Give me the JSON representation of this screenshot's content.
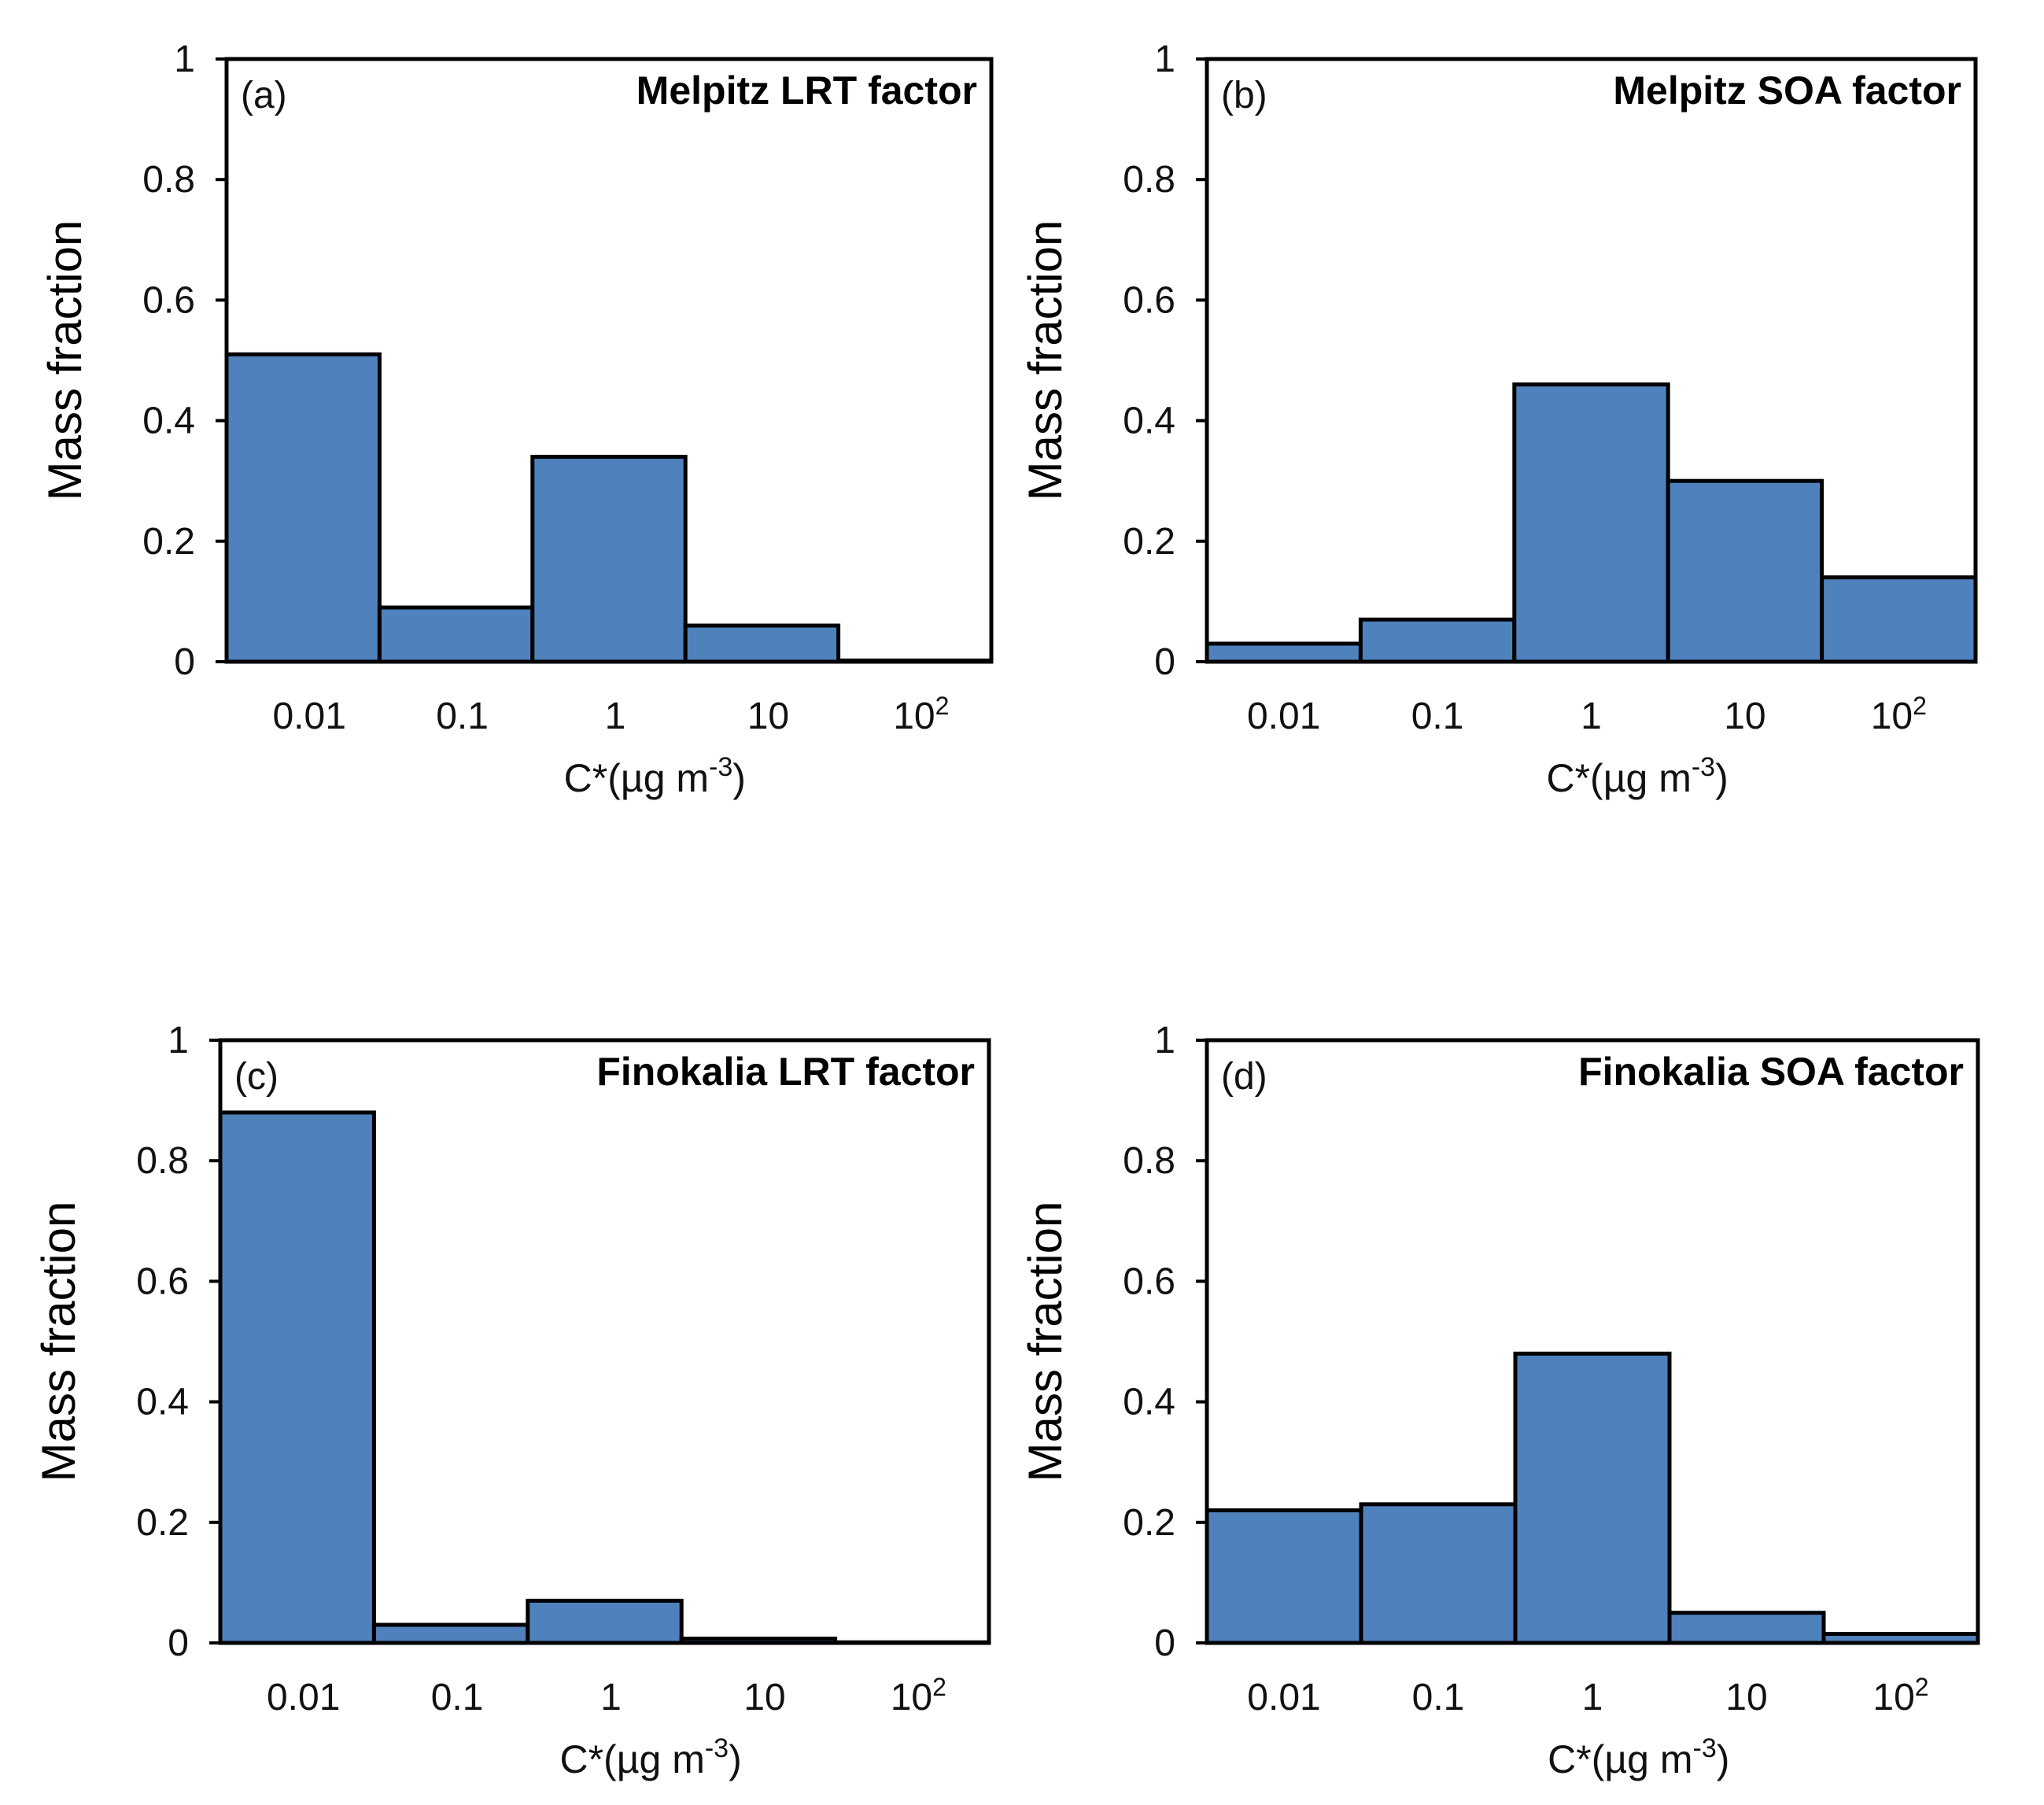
{
  "chart_data": [
    {
      "type": "bar",
      "panel_label": "(a)",
      "title": "Melpitz  LRT factor",
      "categories": [
        "0.01",
        "0.1",
        "1",
        "10",
        "10^2"
      ],
      "category_display": [
        {
          "base": "0.01",
          "sup": ""
        },
        {
          "base": "0.1",
          "sup": ""
        },
        {
          "base": "1",
          "sup": ""
        },
        {
          "base": "10",
          "sup": ""
        },
        {
          "base": "10",
          "sup": "2"
        }
      ],
      "values": [
        0.51,
        0.09,
        0.34,
        0.06,
        0.002
      ],
      "xlabel": {
        "pre": "C*(µg m",
        "sup": "-3",
        "post": ")"
      },
      "ylabel": "Mass fraction",
      "ylim": [
        0,
        1
      ],
      "yticks": [
        "0",
        "0.2",
        "0.4",
        "0.6",
        "0.8",
        "1"
      ]
    },
    {
      "type": "bar",
      "panel_label": "(b)",
      "title": "Melpitz  SOA factor",
      "categories": [
        "0.01",
        "0.1",
        "1",
        "10",
        "10^2"
      ],
      "category_display": [
        {
          "base": "0.01",
          "sup": ""
        },
        {
          "base": "0.1",
          "sup": ""
        },
        {
          "base": "1",
          "sup": ""
        },
        {
          "base": "10",
          "sup": ""
        },
        {
          "base": "10",
          "sup": "2"
        }
      ],
      "values": [
        0.03,
        0.07,
        0.46,
        0.3,
        0.14
      ],
      "xlabel": {
        "pre": "C*(µg m",
        "sup": "-3",
        "post": ")"
      },
      "ylabel": "Mass fraction",
      "ylim": [
        0,
        1
      ],
      "yticks": [
        "0",
        "0.2",
        "0.4",
        "0.6",
        "0.8",
        "1"
      ]
    },
    {
      "type": "bar",
      "panel_label": "(c)",
      "title": "Finokalia  LRT factor",
      "categories": [
        "0.01",
        "0.1",
        "1",
        "10",
        "10^2"
      ],
      "category_display": [
        {
          "base": "0.01",
          "sup": ""
        },
        {
          "base": "0.1",
          "sup": ""
        },
        {
          "base": "1",
          "sup": ""
        },
        {
          "base": "10",
          "sup": ""
        },
        {
          "base": "10",
          "sup": "2"
        }
      ],
      "values": [
        0.88,
        0.03,
        0.07,
        0.007,
        0.001
      ],
      "xlabel": {
        "pre": "C*(µg m",
        "sup": "-3",
        "post": ")"
      },
      "ylabel": "Mass fraction",
      "ylim": [
        0,
        1
      ],
      "yticks": [
        "0",
        "0.2",
        "0.4",
        "0.6",
        "0.8",
        "1"
      ]
    },
    {
      "type": "bar",
      "panel_label": "(d)",
      "title": "Finokalia  SOA factor",
      "categories": [
        "0.01",
        "0.1",
        "1",
        "10",
        "10^2"
      ],
      "category_display": [
        {
          "base": "0.01",
          "sup": ""
        },
        {
          "base": "0.1",
          "sup": ""
        },
        {
          "base": "1",
          "sup": ""
        },
        {
          "base": "10",
          "sup": ""
        },
        {
          "base": "10",
          "sup": "2"
        }
      ],
      "values": [
        0.22,
        0.23,
        0.48,
        0.05,
        0.015
      ],
      "xlabel": {
        "pre": "C*(µg m",
        "sup": "-3",
        "post": ")"
      },
      "ylabel": "Mass fraction",
      "ylim": [
        0,
        1
      ],
      "yticks": [
        "0",
        "0.2",
        "0.4",
        "0.6",
        "0.8",
        "1"
      ]
    }
  ],
  "colors": {
    "bar": "#4F81BD",
    "edge": "#000000"
  }
}
